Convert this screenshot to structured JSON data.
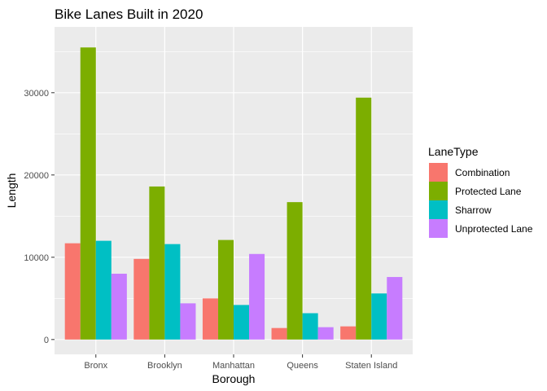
{
  "chart_data": {
    "type": "bar",
    "title": "Bike Lanes Built in 2020",
    "xlabel": "Borough",
    "ylabel": "Length",
    "categories": [
      "Bronx",
      "Brooklyn",
      "Manhattan",
      "Queens",
      "Staten Island"
    ],
    "series": [
      {
        "name": "Combination",
        "values": [
          11700,
          9800,
          5000,
          1400,
          1600
        ]
      },
      {
        "name": "Protected Lane",
        "values": [
          35500,
          18600,
          12100,
          16700,
          29400
        ]
      },
      {
        "name": "Sharrow",
        "values": [
          12000,
          11600,
          4200,
          3200,
          5600
        ]
      },
      {
        "name": "Unprotected Lane",
        "values": [
          8000,
          4400,
          10400,
          1500,
          7600
        ]
      }
    ],
    "ylim": [
      -1800,
      38000
    ],
    "yticks": [
      0,
      10000,
      20000,
      30000
    ],
    "ytick_labels": [
      "0",
      "10000",
      "20000",
      "30000"
    ],
    "grid": true,
    "legend": {
      "title": "LaneType",
      "position": "right"
    },
    "colors": {
      "series": [
        "#F8766D",
        "#7CAE00",
        "#00BFC4",
        "#C77CFF"
      ],
      "panel_bg": "#EBEBEB",
      "grid": "#FFFFFF"
    }
  }
}
